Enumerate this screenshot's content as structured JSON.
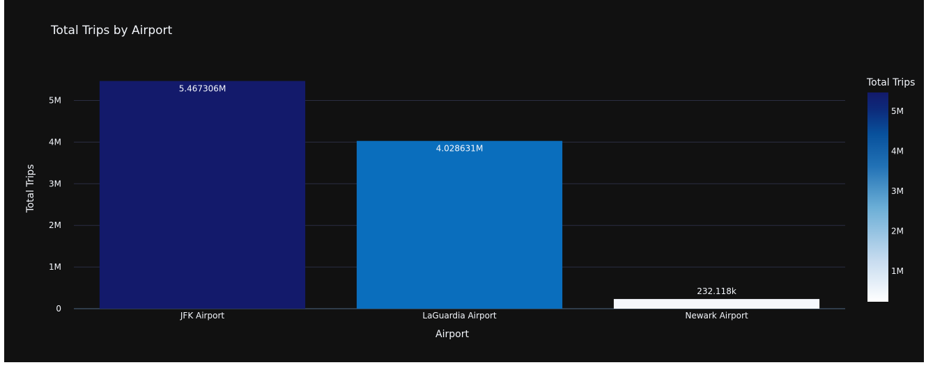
{
  "chart_data": {
    "type": "bar",
    "title": "Total Trips by Airport",
    "xlabel": "Airport",
    "ylabel": "Total Trips",
    "categories": [
      "JFK Airport",
      "LaGuardia Airport",
      "Newark Airport"
    ],
    "values": [
      5467306,
      4028631,
      232118
    ],
    "data_labels": [
      "5.467306M",
      "4.028631M",
      "232.118k"
    ],
    "ylim": [
      0,
      5467306
    ],
    "yticks": [
      0,
      1000000,
      2000000,
      3000000,
      4000000,
      5000000
    ],
    "ytick_labels": [
      "0",
      "1M",
      "2M",
      "3M",
      "4M",
      "5M"
    ],
    "grid": true,
    "colorbar": {
      "title": "Total Trips",
      "range": [
        232118,
        5467306
      ],
      "ticks": [
        1000000,
        2000000,
        3000000,
        4000000,
        5000000
      ],
      "tick_labels": [
        "1M",
        "2M",
        "3M",
        "4M",
        "5M"
      ],
      "colors": [
        "#ffffff",
        "#c6dbef",
        "#6baed6",
        "#2171b5",
        "#08519c",
        "#0d2a7a",
        "#131a6b"
      ]
    },
    "bar_colors": [
      "#131a6b",
      "#0a6ebd",
      "#f5f8fd"
    ],
    "background": "#111111",
    "grid_color": "#2b2e43",
    "text_color": "#f2f5fa"
  }
}
